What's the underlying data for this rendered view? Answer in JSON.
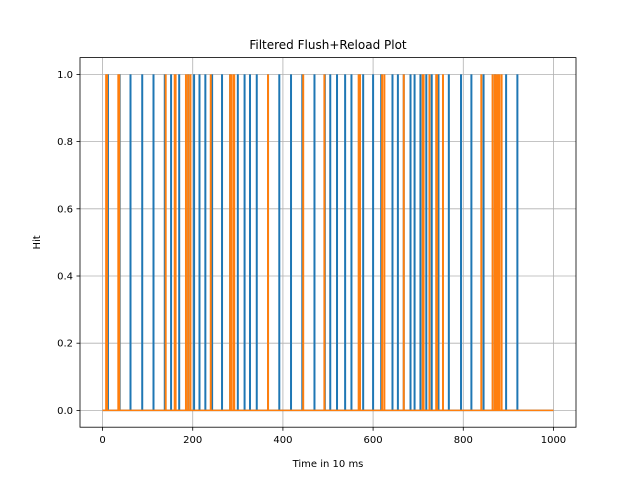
{
  "chart_data": {
    "type": "line",
    "title": "Filtered Flush+Reload Plot",
    "xlabel": "Time in 10 ms",
    "ylabel": "Hit",
    "xlim": [
      -50,
      1050
    ],
    "ylim": [
      -0.05,
      1.05
    ],
    "xticks": [
      0,
      200,
      400,
      600,
      800,
      1000
    ],
    "yticks": [
      0.0,
      0.2,
      0.4,
      0.6,
      0.8,
      1.0
    ],
    "xtick_labels": [
      "0",
      "200",
      "400",
      "600",
      "800",
      "1000"
    ],
    "ytick_labels": [
      "0.0",
      "0.2",
      "0.4",
      "0.6",
      "0.8",
      "1.0"
    ],
    "grid": true,
    "x_range": [
      0,
      1000
    ],
    "series": [
      {
        "color": "#1f77b4",
        "spikes": [
          12,
          38,
          62,
          88,
          113,
          138,
          152,
          170,
          190,
          203,
          215,
          228,
          243,
          265,
          283,
          300,
          315,
          327,
          342,
          367,
          392,
          418,
          443,
          470,
          493,
          505,
          520,
          538,
          552,
          570,
          578,
          600,
          618,
          643,
          655,
          668,
          683,
          692,
          705,
          718,
          730,
          745,
          768,
          795,
          818,
          845,
          870,
          895,
          920
        ]
      },
      {
        "color": "#ff7f0e",
        "spikes": [
          8,
          10,
          35,
          37,
          140,
          160,
          162,
          185,
          190,
          195,
          240,
          283,
          285,
          290,
          292,
          367,
          445,
          492,
          568,
          571,
          620,
          625,
          668,
          710,
          712,
          725,
          740,
          742,
          755,
          840,
          865,
          870,
          873,
          877,
          880,
          885
        ]
      }
    ]
  }
}
